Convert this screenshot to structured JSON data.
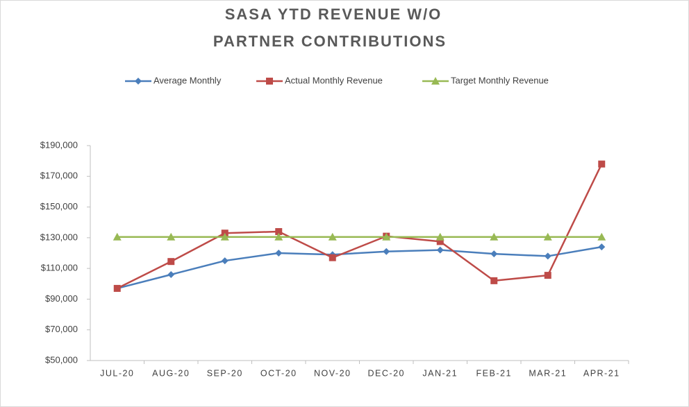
{
  "chart_data": {
    "type": "line",
    "title": [
      "SASA YTD REVENUE W/O",
      "PARTNER CONTRIBUTIONS"
    ],
    "categories": [
      "JUL-20",
      "AUG-20",
      "SEP-20",
      "OCT-20",
      "NOV-20",
      "DEC-20",
      "JAN-21",
      "FEB-21",
      "MAR-21",
      "APR-21"
    ],
    "series": [
      {
        "name": "Average Monthly",
        "color": "#4a7ebb",
        "marker": "diamond",
        "values": [
          97000,
          106000,
          115000,
          120000,
          119000,
          121000,
          122000,
          119500,
          118000,
          124000
        ]
      },
      {
        "name": "Actual Monthly Revenue",
        "color": "#be4b48",
        "marker": "square",
        "values": [
          97000,
          114500,
          133000,
          134000,
          117000,
          131000,
          127500,
          102000,
          105500,
          178000
        ]
      },
      {
        "name": "Target Monthly Revenue",
        "color": "#98b954",
        "marker": "triangle",
        "values": [
          130500,
          130500,
          130500,
          130500,
          130500,
          130500,
          130500,
          130500,
          130500,
          130500
        ]
      }
    ],
    "ylim": [
      50000,
      190000
    ],
    "yticks": [
      {
        "value": 50000,
        "label": "$50,000"
      },
      {
        "value": 70000,
        "label": "$70,000"
      },
      {
        "value": 90000,
        "label": "$90,000"
      },
      {
        "value": 110000,
        "label": "$110,000"
      },
      {
        "value": 130000,
        "label": "$130,000"
      },
      {
        "value": 150000,
        "label": "$150,000"
      },
      {
        "value": 170000,
        "label": "$170,000"
      },
      {
        "value": 190000,
        "label": "$190,000"
      }
    ],
    "grid": false,
    "legend": "top"
  }
}
